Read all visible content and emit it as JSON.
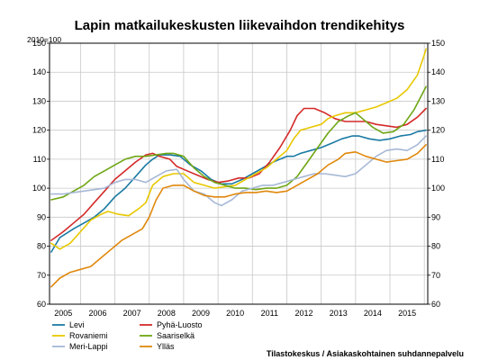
{
  "chart_data": {
    "type": "line",
    "title": "Lapin matkailukeskusten liikevaihdon trendikehitys",
    "ylabel": "2010=100",
    "xlabel": "",
    "source": "Tilastokeskus / Asiakaskohtainen suhdannepalvelu",
    "ylim": [
      60,
      150
    ],
    "yticks": [
      60,
      70,
      80,
      90,
      100,
      110,
      120,
      130,
      140,
      150
    ],
    "xlim": [
      2004.6,
      2015.6
    ],
    "year_labels": [
      "2005",
      "2006",
      "2007",
      "2008",
      "2009",
      "2010",
      "2011",
      "2012",
      "2013",
      "2014",
      "2015"
    ],
    "grid": true,
    "legend_position": "bottom-left",
    "series": [
      {
        "name": "Levi",
        "color": "#1a7aa3",
        "points": [
          [
            2004.65,
            78
          ],
          [
            2004.9,
            83
          ],
          [
            2005.3,
            86
          ],
          [
            2005.6,
            88
          ],
          [
            2005.9,
            90
          ],
          [
            2006.2,
            93
          ],
          [
            2006.5,
            97
          ],
          [
            2006.8,
            100
          ],
          [
            2007.1,
            104
          ],
          [
            2007.4,
            108
          ],
          [
            2007.6,
            110
          ],
          [
            2007.8,
            111.5
          ],
          [
            2008.1,
            111.5
          ],
          [
            2008.4,
            111
          ],
          [
            2008.7,
            108
          ],
          [
            2009.0,
            106
          ],
          [
            2009.3,
            103
          ],
          [
            2009.6,
            101.5
          ],
          [
            2009.9,
            101.5
          ],
          [
            2010.2,
            103
          ],
          [
            2010.5,
            105
          ],
          [
            2010.8,
            107
          ],
          [
            2011.1,
            109
          ],
          [
            2011.3,
            110
          ],
          [
            2011.5,
            111
          ],
          [
            2011.7,
            111
          ],
          [
            2011.9,
            112
          ],
          [
            2012.2,
            113
          ],
          [
            2012.5,
            114
          ],
          [
            2012.8,
            115.5
          ],
          [
            2013.1,
            117
          ],
          [
            2013.4,
            118
          ],
          [
            2013.6,
            118
          ],
          [
            2013.9,
            117
          ],
          [
            2014.2,
            116.5
          ],
          [
            2014.5,
            117
          ],
          [
            2014.8,
            118
          ],
          [
            2015.1,
            118.5
          ],
          [
            2015.3,
            119.5
          ],
          [
            2015.55,
            120
          ]
        ]
      },
      {
        "name": "Pyhä-Luosto",
        "color": "#d42a2a",
        "points": [
          [
            2004.65,
            82
          ],
          [
            2005.0,
            85
          ],
          [
            2005.3,
            88
          ],
          [
            2005.6,
            91
          ],
          [
            2005.9,
            95
          ],
          [
            2006.2,
            99
          ],
          [
            2006.5,
            103
          ],
          [
            2006.8,
            106
          ],
          [
            2007.1,
            109
          ],
          [
            2007.4,
            111.5
          ],
          [
            2007.6,
            112
          ],
          [
            2007.8,
            111
          ],
          [
            2008.1,
            110
          ],
          [
            2008.3,
            107.5
          ],
          [
            2008.6,
            106
          ],
          [
            2008.9,
            104.5
          ],
          [
            2009.2,
            103
          ],
          [
            2009.5,
            102
          ],
          [
            2009.8,
            102.5
          ],
          [
            2010.1,
            103.5
          ],
          [
            2010.4,
            103.5
          ],
          [
            2010.7,
            105
          ],
          [
            2011.0,
            109
          ],
          [
            2011.3,
            114
          ],
          [
            2011.6,
            120
          ],
          [
            2011.8,
            125
          ],
          [
            2012.0,
            127.5
          ],
          [
            2012.3,
            127.5
          ],
          [
            2012.6,
            126
          ],
          [
            2012.9,
            124
          ],
          [
            2013.2,
            123
          ],
          [
            2013.5,
            123
          ],
          [
            2013.8,
            123
          ],
          [
            2014.1,
            122
          ],
          [
            2014.4,
            121.5
          ],
          [
            2014.7,
            121
          ],
          [
            2015.0,
            122
          ],
          [
            2015.3,
            124.5
          ],
          [
            2015.55,
            127.5
          ]
        ]
      },
      {
        "name": "Rovaniemi",
        "color": "#e8c800",
        "points": [
          [
            2004.65,
            81
          ],
          [
            2004.9,
            79
          ],
          [
            2005.2,
            81
          ],
          [
            2005.5,
            85
          ],
          [
            2005.8,
            89
          ],
          [
            2006.1,
            91
          ],
          [
            2006.3,
            92
          ],
          [
            2006.6,
            91
          ],
          [
            2006.9,
            90.5
          ],
          [
            2007.2,
            93
          ],
          [
            2007.4,
            95
          ],
          [
            2007.6,
            101
          ],
          [
            2007.9,
            104
          ],
          [
            2008.2,
            105
          ],
          [
            2008.5,
            105
          ],
          [
            2008.8,
            102
          ],
          [
            2009.1,
            101
          ],
          [
            2009.4,
            100
          ],
          [
            2009.7,
            100.5
          ],
          [
            2010.0,
            101
          ],
          [
            2010.3,
            103
          ],
          [
            2010.6,
            105
          ],
          [
            2010.9,
            107
          ],
          [
            2011.2,
            110
          ],
          [
            2011.5,
            113
          ],
          [
            2011.7,
            117
          ],
          [
            2011.9,
            120
          ],
          [
            2012.2,
            121
          ],
          [
            2012.5,
            122
          ],
          [
            2012.7,
            124
          ],
          [
            2012.9,
            125
          ],
          [
            2013.2,
            126
          ],
          [
            2013.5,
            126
          ],
          [
            2013.8,
            127
          ],
          [
            2014.1,
            128
          ],
          [
            2014.4,
            129.5
          ],
          [
            2014.7,
            131
          ],
          [
            2015.0,
            134
          ],
          [
            2015.3,
            139
          ],
          [
            2015.5,
            146
          ],
          [
            2015.55,
            148
          ]
        ]
      },
      {
        "name": "Saariselkä",
        "color": "#6ea614",
        "points": [
          [
            2004.65,
            96
          ],
          [
            2005.0,
            97
          ],
          [
            2005.3,
            99
          ],
          [
            2005.6,
            101
          ],
          [
            2005.9,
            104
          ],
          [
            2006.2,
            106
          ],
          [
            2006.5,
            108
          ],
          [
            2006.8,
            110
          ],
          [
            2007.1,
            111
          ],
          [
            2007.4,
            111
          ],
          [
            2007.7,
            111.5
          ],
          [
            2008.0,
            112
          ],
          [
            2008.2,
            112
          ],
          [
            2008.5,
            111
          ],
          [
            2008.8,
            107
          ],
          [
            2009.1,
            104
          ],
          [
            2009.4,
            102
          ],
          [
            2009.7,
            101
          ],
          [
            2010.0,
            100
          ],
          [
            2010.3,
            100
          ],
          [
            2010.6,
            99.5
          ],
          [
            2010.9,
            100
          ],
          [
            2011.2,
            100
          ],
          [
            2011.5,
            101
          ],
          [
            2011.8,
            104
          ],
          [
            2012.1,
            109
          ],
          [
            2012.4,
            114
          ],
          [
            2012.7,
            119
          ],
          [
            2013.0,
            123
          ],
          [
            2013.3,
            125
          ],
          [
            2013.5,
            126
          ],
          [
            2013.7,
            124
          ],
          [
            2014.0,
            121
          ],
          [
            2014.3,
            119
          ],
          [
            2014.6,
            119.5
          ],
          [
            2014.9,
            122
          ],
          [
            2015.2,
            127
          ],
          [
            2015.55,
            135
          ]
        ]
      },
      {
        "name": "Meri-Lappi",
        "color": "#a6b8d6",
        "points": [
          [
            2004.65,
            98
          ],
          [
            2005.0,
            98
          ],
          [
            2005.3,
            98.5
          ],
          [
            2005.6,
            99
          ],
          [
            2005.9,
            99.5
          ],
          [
            2006.2,
            100
          ],
          [
            2006.5,
            102
          ],
          [
            2006.8,
            103
          ],
          [
            2007.1,
            103
          ],
          [
            2007.4,
            102
          ],
          [
            2007.7,
            104
          ],
          [
            2008.0,
            106
          ],
          [
            2008.3,
            106.5
          ],
          [
            2008.5,
            103
          ],
          [
            2008.8,
            99
          ],
          [
            2009.1,
            98
          ],
          [
            2009.4,
            95
          ],
          [
            2009.6,
            94
          ],
          [
            2009.9,
            96
          ],
          [
            2010.2,
            99
          ],
          [
            2010.5,
            100
          ],
          [
            2010.8,
            101
          ],
          [
            2011.1,
            101
          ],
          [
            2011.4,
            102
          ],
          [
            2011.7,
            103
          ],
          [
            2012.0,
            104
          ],
          [
            2012.3,
            105
          ],
          [
            2012.6,
            105
          ],
          [
            2012.9,
            104.5
          ],
          [
            2013.2,
            104
          ],
          [
            2013.5,
            105
          ],
          [
            2013.8,
            108
          ],
          [
            2014.1,
            111
          ],
          [
            2014.4,
            113
          ],
          [
            2014.7,
            113.5
          ],
          [
            2015.0,
            113
          ],
          [
            2015.3,
            115
          ],
          [
            2015.55,
            118
          ]
        ]
      },
      {
        "name": "Ylläs",
        "color": "#e0880c",
        "points": [
          [
            2004.65,
            66
          ],
          [
            2004.9,
            69
          ],
          [
            2005.2,
            71
          ],
          [
            2005.5,
            72
          ],
          [
            2005.8,
            73
          ],
          [
            2006.1,
            76
          ],
          [
            2006.4,
            79
          ],
          [
            2006.7,
            82
          ],
          [
            2007.0,
            84
          ],
          [
            2007.3,
            86
          ],
          [
            2007.5,
            90
          ],
          [
            2007.7,
            96
          ],
          [
            2007.9,
            100
          ],
          [
            2008.2,
            101
          ],
          [
            2008.5,
            101
          ],
          [
            2008.8,
            99
          ],
          [
            2009.1,
            97.5
          ],
          [
            2009.4,
            97
          ],
          [
            2009.7,
            97
          ],
          [
            2010.0,
            98
          ],
          [
            2010.3,
            98.5
          ],
          [
            2010.6,
            98.5
          ],
          [
            2010.9,
            99
          ],
          [
            2011.2,
            98.5
          ],
          [
            2011.5,
            99
          ],
          [
            2011.8,
            101
          ],
          [
            2012.1,
            103
          ],
          [
            2012.4,
            105
          ],
          [
            2012.7,
            108
          ],
          [
            2013.0,
            110
          ],
          [
            2013.2,
            112
          ],
          [
            2013.5,
            112.5
          ],
          [
            2013.8,
            111
          ],
          [
            2014.1,
            110
          ],
          [
            2014.4,
            109
          ],
          [
            2014.7,
            109.5
          ],
          [
            2015.0,
            110
          ],
          [
            2015.3,
            112
          ],
          [
            2015.55,
            115
          ]
        ]
      }
    ]
  }
}
